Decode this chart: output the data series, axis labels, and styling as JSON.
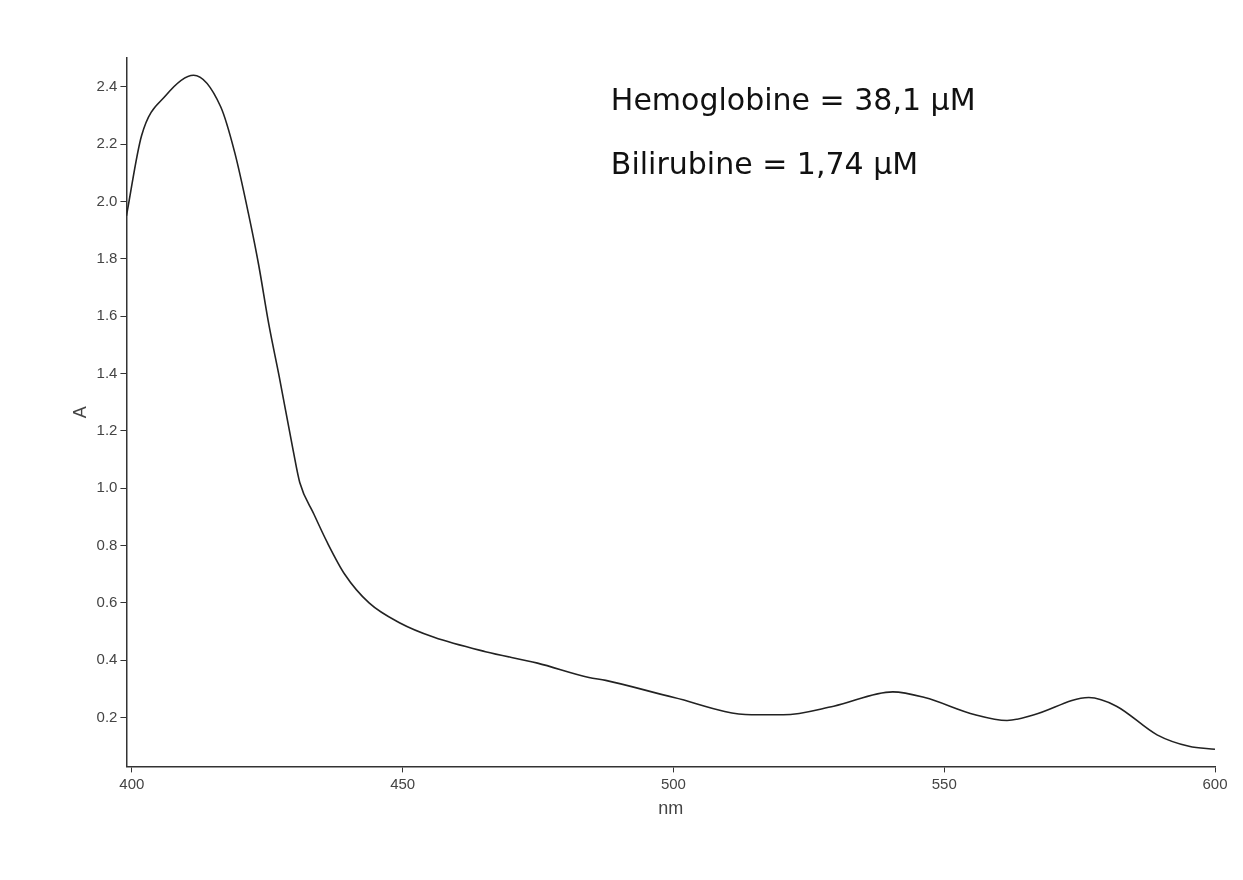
{
  "chart_data": {
    "type": "line",
    "xlabel": "nm",
    "ylabel": "A",
    "xlim": [
      399,
      600
    ],
    "xticks": [
      400,
      450,
      500,
      550,
      600
    ],
    "ylim": [
      0.03,
      2.5
    ],
    "yticks": [
      0.2,
      0.4,
      0.6,
      0.8,
      {
        "value": 1,
        "label": "1.0"
      },
      1.2,
      1.4,
      1.6,
      1.8,
      {
        "value": 2,
        "label": "2.0"
      },
      2.2,
      2.4
    ],
    "grid": false,
    "legend": false,
    "marker": "none",
    "line_style": "solid",
    "annotations": [
      "Hemoglobine = 38,1 µM",
      "Bilirubine = 1,74 µM"
    ],
    "series": [
      {
        "color": "#222222",
        "x": [
          399,
          401.8,
          406.3,
          411.4,
          416.4,
          419,
          421.5,
          423.4,
          425.3,
          427.2,
          429.8,
          431,
          433.6,
          436.1,
          439.3,
          443.8,
          449.5,
          455.8,
          465.3,
          474.9,
          484.4,
          487.5,
          500.1,
          514.4,
          520.3,
          529.6,
          540.5,
          546.4,
          555.7,
          561.6,
          566.6,
          576.7,
          581.8,
          589.3,
          595.2,
          600
        ],
        "values": [
          1.95,
          2.23,
          2.37,
          2.44,
          2.33,
          2.17,
          1.96,
          1.78,
          1.57,
          1.39,
          1.13,
          1.02,
          0.91,
          0.81,
          0.7,
          0.6,
          0.53,
          0.48,
          0.43,
          0.39,
          0.34,
          0.33,
          0.27,
          0.21,
          0.21,
          0.24,
          0.29,
          0.27,
          0.21,
          0.19,
          0.21,
          0.27,
          0.24,
          0.14,
          0.1,
          0.09
        ]
      }
    ]
  }
}
